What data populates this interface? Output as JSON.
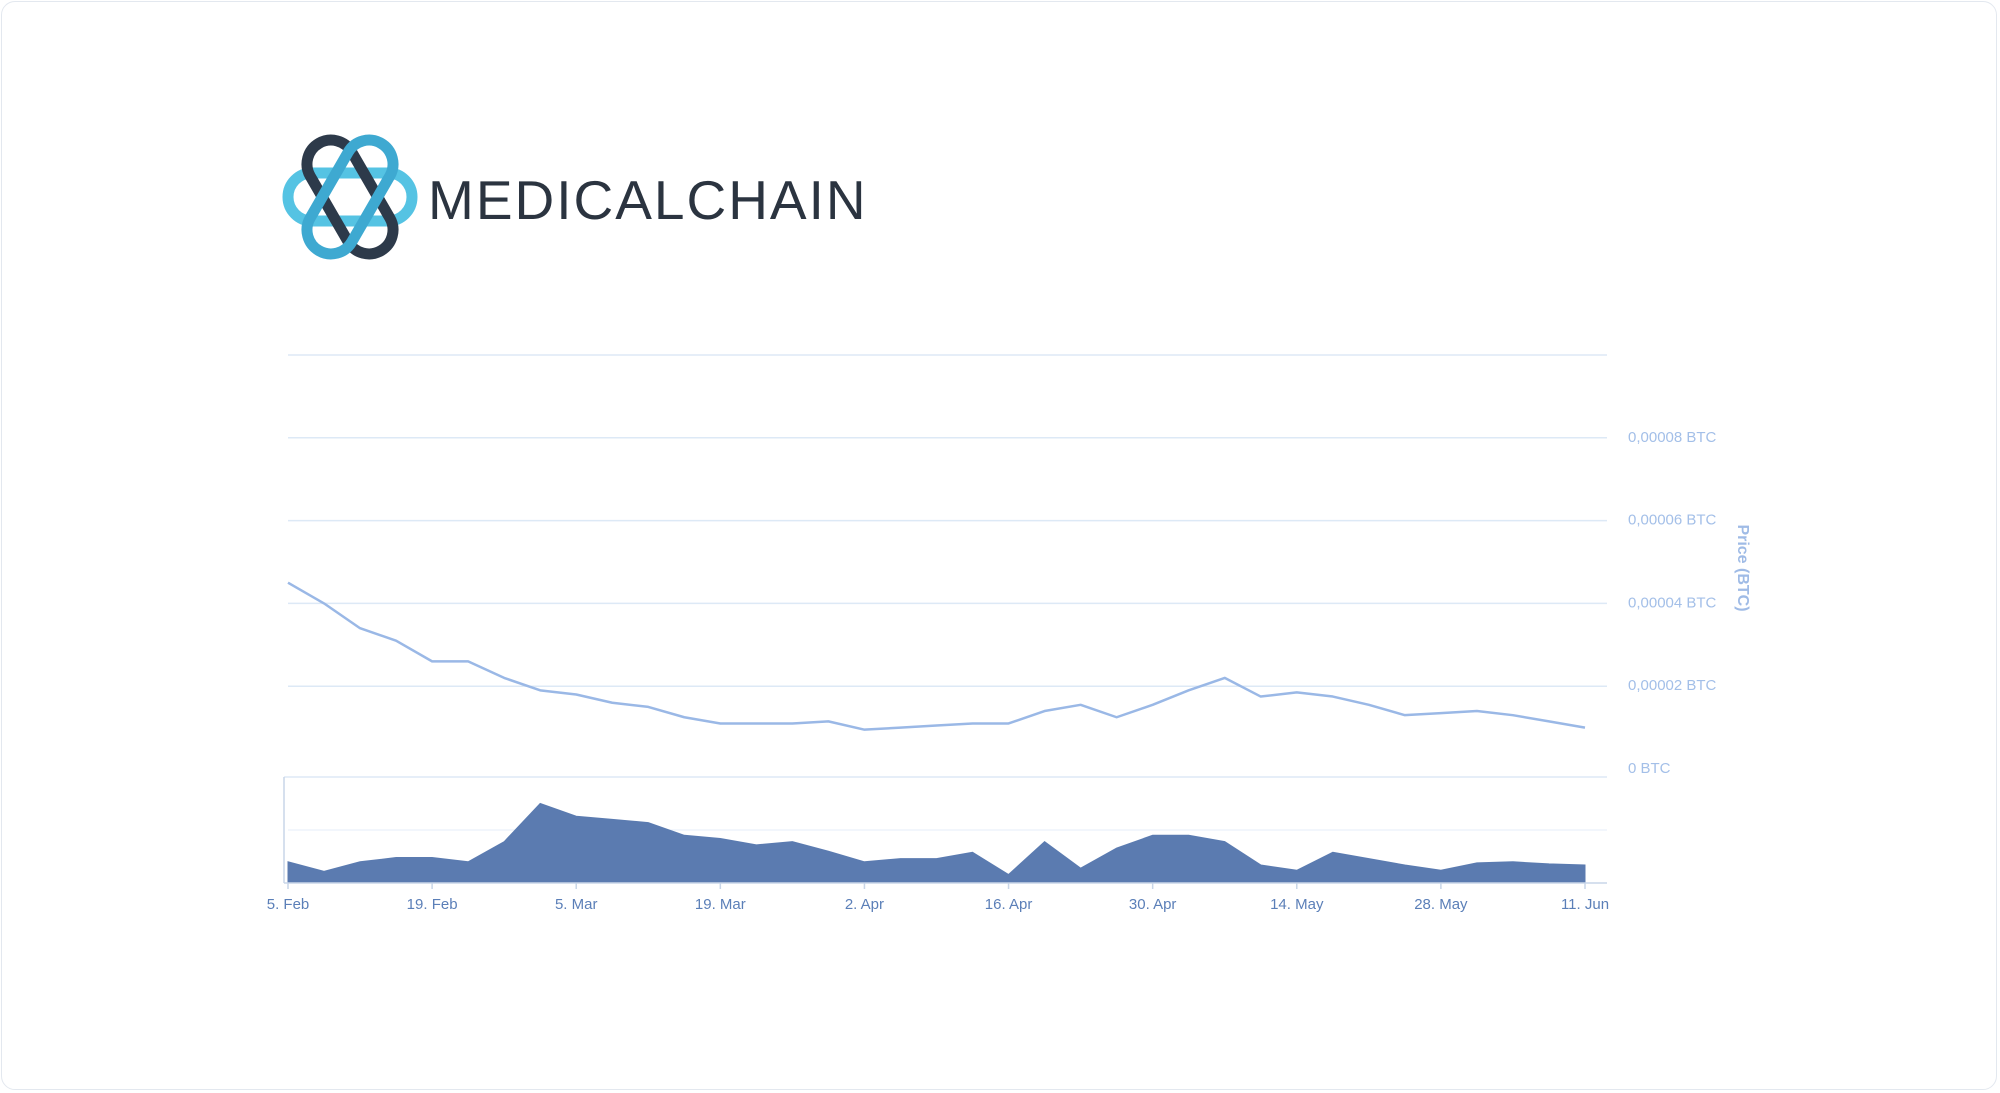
{
  "header": {
    "brand": "MEDICALCHAIN"
  },
  "chart_data": [
    {
      "type": "line",
      "y_label": "Price (BTC)",
      "color": "#9ab8e6",
      "grid": true,
      "x": [
        "5. Feb",
        null,
        null,
        null,
        "19. Feb",
        null,
        null,
        null,
        "5. Mar",
        null,
        null,
        null,
        "19. Mar",
        null,
        null,
        null,
        "2. Apr",
        null,
        null,
        null,
        "16. Apr",
        null,
        null,
        null,
        "30. Apr",
        null,
        null,
        null,
        "14. May",
        null,
        null,
        null,
        "28. May",
        null,
        null,
        null,
        "11. Jun"
      ],
      "values": [
        4.5e-05,
        4e-05,
        3.4e-05,
        3.1e-05,
        2.6e-05,
        2.6e-05,
        2.2e-05,
        1.9e-05,
        1.8e-05,
        1.6e-05,
        1.5e-05,
        1.25e-05,
        1.1e-05,
        1.1e-05,
        1.1e-05,
        1.15e-05,
        9.5e-06,
        1e-05,
        1.05e-05,
        1.1e-05,
        1.1e-05,
        1.4e-05,
        1.55e-05,
        1.25e-05,
        1.55e-05,
        1.9e-05,
        2.2e-05,
        1.75e-05,
        1.85e-05,
        1.75e-05,
        1.55e-05,
        1.3e-05,
        1.35e-05,
        1.4e-05,
        1.3e-05,
        1.15e-05,
        1e-05
      ],
      "ylim": [
        0,
        0.0001
      ],
      "yticks": [
        {
          "value": 0,
          "label": "0 BTC"
        },
        {
          "value": 2e-05,
          "label": "0,00002 BTC"
        },
        {
          "value": 4e-05,
          "label": "0,00004 BTC"
        },
        {
          "value": 6e-05,
          "label": "0,00006 BTC"
        },
        {
          "value": 8e-05,
          "label": "0,00008 BTC"
        }
      ]
    },
    {
      "type": "area",
      "color": "#5b7bb0",
      "ylim": [
        0,
        100
      ],
      "values": [
        20,
        11,
        20,
        24,
        24,
        20,
        39,
        75,
        63,
        60,
        57,
        45,
        42,
        36,
        39,
        30,
        20,
        23,
        23,
        29,
        8,
        39,
        14,
        33,
        45,
        45,
        39,
        17,
        12,
        29,
        23,
        17,
        12,
        19,
        20,
        18,
        17
      ]
    }
  ]
}
